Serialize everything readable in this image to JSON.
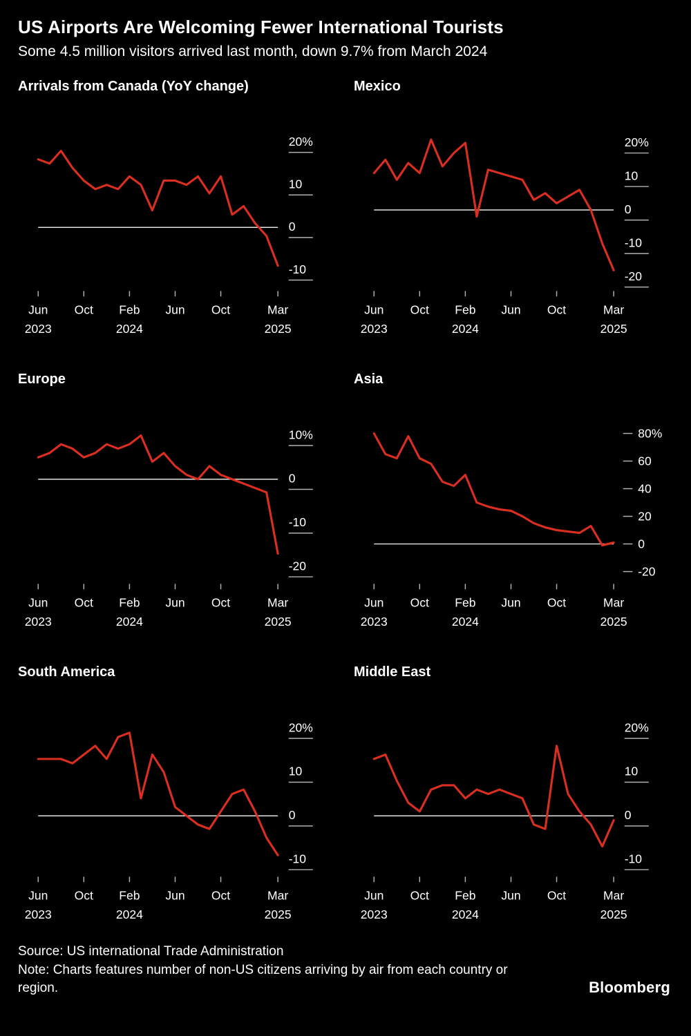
{
  "header": {
    "title": "US Airports Are Welcoming Fewer International Tourists",
    "subtitle": "Some 4.5 million visitors arrived last month, down 9.7% from March 2024"
  },
  "footer": {
    "source": "Source: US international Trade Administration",
    "note": "Note: Charts features number of non-US citizens arriving by air from each country or region.",
    "brand": "Bloomberg"
  },
  "colors": {
    "background": "#000000",
    "line": "#da2f20",
    "zero_line": "#e5e5e0",
    "tick": "#b3b3ae",
    "text": "#ffffff"
  },
  "chart_data": [
    {
      "type": "line",
      "title": "Arrivals from Canada (YoY change)",
      "categories": [
        "Jun 2023",
        "Jul 2023",
        "Aug 2023",
        "Sep 2023",
        "Oct 2023",
        "Nov 2023",
        "Dec 2023",
        "Jan 2024",
        "Feb 2024",
        "Mar 2024",
        "Apr 2024",
        "May 2024",
        "Jun 2024",
        "Jul 2024",
        "Aug 2024",
        "Sep 2024",
        "Oct 2024",
        "Nov 2024",
        "Dec 2024",
        "Jan 2025",
        "Feb 2025",
        "Mar 2025"
      ],
      "values": [
        16,
        15,
        18,
        14,
        11,
        9,
        10,
        9,
        12,
        10,
        4,
        11,
        11,
        10,
        12,
        8,
        12,
        3,
        5,
        1,
        -2,
        -9
      ],
      "ylim": [
        -14,
        23
      ],
      "ytick_values": [
        20,
        10,
        0,
        -10
      ],
      "ytick_labels": [
        "20%",
        "10",
        "0",
        "-10"
      ],
      "xtick_indices": [
        0,
        4,
        8,
        12,
        16,
        21
      ],
      "xtick_labels": [
        [
          "Jun",
          "2023"
        ],
        [
          "Oct",
          ""
        ],
        [
          "Feb",
          "2024"
        ],
        [
          "Jun",
          ""
        ],
        [
          "Oct",
          ""
        ],
        [
          "Mar",
          "2025"
        ]
      ],
      "tick_style": "underline",
      "zero_line": true
    },
    {
      "type": "line",
      "title": "Mexico",
      "categories": [
        "Jun 2023",
        "Jul 2023",
        "Aug 2023",
        "Sep 2023",
        "Oct 2023",
        "Nov 2023",
        "Dec 2023",
        "Jan 2024",
        "Feb 2024",
        "Mar 2024",
        "Apr 2024",
        "May 2024",
        "Jun 2024",
        "Jul 2024",
        "Aug 2024",
        "Sep 2024",
        "Oct 2024",
        "Nov 2024",
        "Dec 2024",
        "Jan 2025",
        "Feb 2025",
        "Mar 2025"
      ],
      "values": [
        11,
        15,
        9,
        14,
        11,
        21,
        13,
        17,
        20,
        -2,
        12,
        11,
        10,
        9,
        3,
        5,
        2,
        4,
        6,
        0,
        -10,
        -18
      ],
      "ylim": [
        -23,
        24
      ],
      "ytick_values": [
        20,
        10,
        0,
        -10,
        -20
      ],
      "ytick_labels": [
        "20%",
        "10",
        "0",
        "-10",
        "-20"
      ],
      "xtick_indices": [
        0,
        4,
        8,
        12,
        16,
        21
      ],
      "xtick_labels": [
        [
          "Jun",
          "2023"
        ],
        [
          "Oct",
          ""
        ],
        [
          "Feb",
          "2024"
        ],
        [
          "Jun",
          ""
        ],
        [
          "Oct",
          ""
        ],
        [
          "Mar",
          "2025"
        ]
      ],
      "tick_style": "underline",
      "zero_line": true
    },
    {
      "type": "line",
      "title": "Europe",
      "categories": [
        "Jun 2023",
        "Jul 2023",
        "Aug 2023",
        "Sep 2023",
        "Oct 2023",
        "Nov 2023",
        "Dec 2023",
        "Jan 2024",
        "Feb 2024",
        "Mar 2024",
        "Apr 2024",
        "May 2024",
        "Jun 2024",
        "Jul 2024",
        "Aug 2024",
        "Sep 2024",
        "Oct 2024",
        "Nov 2024",
        "Dec 2024",
        "Jan 2025",
        "Feb 2025",
        "Mar 2025"
      ],
      "values": [
        5,
        6,
        8,
        7,
        5,
        6,
        8,
        7,
        8,
        10,
        4,
        6,
        3,
        1,
        0,
        3,
        1,
        0,
        -1,
        -2,
        -3,
        -17
      ],
      "ylim": [
        -23,
        13
      ],
      "ytick_values": [
        10,
        0,
        -10,
        -20
      ],
      "ytick_labels": [
        "10%",
        "0",
        "-10",
        "-20"
      ],
      "xtick_indices": [
        0,
        4,
        8,
        12,
        16,
        21
      ],
      "xtick_labels": [
        [
          "Jun",
          "2023"
        ],
        [
          "Oct",
          ""
        ],
        [
          "Feb",
          "2024"
        ],
        [
          "Jun",
          ""
        ],
        [
          "Oct",
          ""
        ],
        [
          "Mar",
          "2025"
        ]
      ],
      "tick_style": "underline",
      "zero_line": true
    },
    {
      "type": "line",
      "title": "Asia",
      "categories": [
        "Jun 2023",
        "Jul 2023",
        "Aug 2023",
        "Sep 2023",
        "Oct 2023",
        "Nov 2023",
        "Dec 2023",
        "Jan 2024",
        "Feb 2024",
        "Mar 2024",
        "Apr 2024",
        "May 2024",
        "Jun 2024",
        "Jul 2024",
        "Aug 2024",
        "Sep 2024",
        "Oct 2024",
        "Nov 2024",
        "Dec 2024",
        "Jan 2025",
        "Feb 2025",
        "Mar 2025"
      ],
      "values": [
        80,
        65,
        62,
        78,
        62,
        58,
        45,
        42,
        50,
        30,
        27,
        25,
        24,
        20,
        15,
        12,
        10,
        9,
        8,
        13,
        -1,
        1
      ],
      "ylim": [
        -26,
        88
      ],
      "ytick_values": [
        80,
        60,
        40,
        20,
        0,
        -20
      ],
      "ytick_labels": [
        "80%",
        "60",
        "40",
        "20",
        "0",
        "-20"
      ],
      "xtick_indices": [
        0,
        4,
        8,
        12,
        16,
        21
      ],
      "xtick_labels": [
        [
          "Jun",
          "2023"
        ],
        [
          "Oct",
          ""
        ],
        [
          "Feb",
          "2024"
        ],
        [
          "Jun",
          ""
        ],
        [
          "Oct",
          ""
        ],
        [
          "Mar",
          "2025"
        ]
      ],
      "tick_style": "dash-left",
      "zero_line": true
    },
    {
      "type": "line",
      "title": "South America",
      "categories": [
        "Jun 2023",
        "Jul 2023",
        "Aug 2023",
        "Sep 2023",
        "Oct 2023",
        "Nov 2023",
        "Dec 2023",
        "Jan 2024",
        "Feb 2024",
        "Mar 2024",
        "Apr 2024",
        "May 2024",
        "Jun 2024",
        "Jul 2024",
        "Aug 2024",
        "Sep 2024",
        "Oct 2024",
        "Nov 2024",
        "Dec 2024",
        "Jan 2025",
        "Feb 2025",
        "Mar 2025"
      ],
      "values": [
        13,
        13,
        13,
        12,
        14,
        16,
        13,
        18,
        19,
        4,
        14,
        10,
        2,
        0,
        -2,
        -3,
        1,
        5,
        6,
        1,
        -5,
        -9
      ],
      "ylim": [
        -13,
        23
      ],
      "ytick_values": [
        20,
        10,
        0,
        -10
      ],
      "ytick_labels": [
        "20%",
        "10",
        "0",
        "-10"
      ],
      "xtick_indices": [
        0,
        4,
        8,
        12,
        16,
        21
      ],
      "xtick_labels": [
        [
          "Jun",
          "2023"
        ],
        [
          "Oct",
          ""
        ],
        [
          "Feb",
          "2024"
        ],
        [
          "Jun",
          ""
        ],
        [
          "Oct",
          ""
        ],
        [
          "Mar",
          "2025"
        ]
      ],
      "tick_style": "underline",
      "zero_line": true
    },
    {
      "type": "line",
      "title": "Middle East",
      "categories": [
        "Jun 2023",
        "Jul 2023",
        "Aug 2023",
        "Sep 2023",
        "Oct 2023",
        "Nov 2023",
        "Dec 2023",
        "Jan 2024",
        "Feb 2024",
        "Mar 2024",
        "Apr 2024",
        "May 2024",
        "Jun 2024",
        "Jul 2024",
        "Aug 2024",
        "Sep 2024",
        "Oct 2024",
        "Nov 2024",
        "Dec 2024",
        "Jan 2025",
        "Feb 2025",
        "Mar 2025"
      ],
      "values": [
        13,
        14,
        8,
        3,
        1,
        6,
        7,
        7,
        4,
        6,
        5,
        6,
        5,
        4,
        -2,
        -3,
        16,
        5,
        1,
        -2,
        -7,
        -1
      ],
      "ylim": [
        -13,
        23
      ],
      "ytick_values": [
        20,
        10,
        0,
        -10
      ],
      "ytick_labels": [
        "20%",
        "10",
        "0",
        "-10"
      ],
      "xtick_indices": [
        0,
        4,
        8,
        12,
        16,
        21
      ],
      "xtick_labels": [
        [
          "Jun",
          "2023"
        ],
        [
          "Oct",
          ""
        ],
        [
          "Feb",
          "2024"
        ],
        [
          "Jun",
          ""
        ],
        [
          "Oct",
          ""
        ],
        [
          "Mar",
          "2025"
        ]
      ],
      "tick_style": "underline",
      "zero_line": true
    }
  ]
}
